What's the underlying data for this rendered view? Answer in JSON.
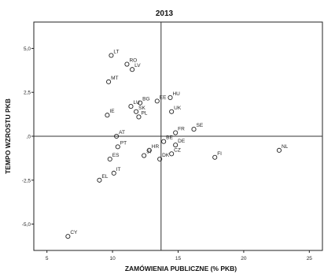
{
  "chart_data": {
    "type": "scatter",
    "title": "2013",
    "xlabel": "ZAMÓWIENIA PUBLICZNE (% PKB)",
    "ylabel": "TEMPO WZROSTU PKB",
    "xlim": [
      4,
      26
    ],
    "ylim": [
      -6.5,
      6.5
    ],
    "xticks": [
      5,
      10,
      15,
      20,
      25
    ],
    "yticks": [
      {
        "value": 5,
        "label": "5,0"
      },
      {
        "value": 2.5,
        "label": "2,5"
      },
      {
        "value": 0,
        "label": ",0"
      },
      {
        "value": -2.5,
        "label": "-2,5"
      },
      {
        "value": -5,
        "label": "-5,0"
      }
    ],
    "reference_lines": {
      "x": 13.7,
      "y": 0
    },
    "grid": false,
    "marker": "hollow-circle",
    "points": [
      {
        "label": "LT",
        "x": 9.9,
        "y": 4.6
      },
      {
        "label": "RO",
        "x": 11.1,
        "y": 4.1
      },
      {
        "label": "LV",
        "x": 11.5,
        "y": 3.8
      },
      {
        "label": "MT",
        "x": 9.7,
        "y": 3.1
      },
      {
        "label": "HU",
        "x": 14.4,
        "y": 2.2
      },
      {
        "label": "EE",
        "x": 13.4,
        "y": 2.0
      },
      {
        "label": "BG",
        "x": 12.1,
        "y": 1.9
      },
      {
        "label": "LU",
        "x": 11.4,
        "y": 1.7
      },
      {
        "label": "UK",
        "x": 14.5,
        "y": 1.4
      },
      {
        "label": "SK",
        "x": 11.8,
        "y": 1.4
      },
      {
        "label": "IE",
        "x": 9.6,
        "y": 1.2
      },
      {
        "label": "PL",
        "x": 12.0,
        "y": 1.1
      },
      {
        "label": "SE",
        "x": 16.2,
        "y": 0.4
      },
      {
        "label": "FR",
        "x": 14.8,
        "y": 0.2
      },
      {
        "label": "AT",
        "x": 10.3,
        "y": 0.0
      },
      {
        "label": "BE",
        "x": 13.9,
        "y": -0.3
      },
      {
        "label": "PT",
        "x": 10.4,
        "y": -0.6
      },
      {
        "label": "DE",
        "x": 14.8,
        "y": -0.5
      },
      {
        "label": "HR",
        "x": 12.8,
        "y": -0.8
      },
      {
        "label": "SI",
        "x": 12.4,
        "y": -1.1
      },
      {
        "label": "CZ",
        "x": 14.5,
        "y": -1.0
      },
      {
        "label": "DK",
        "x": 13.6,
        "y": -1.3
      },
      {
        "label": "ES",
        "x": 9.8,
        "y": -1.3
      },
      {
        "label": "FI",
        "x": 17.8,
        "y": -1.2
      },
      {
        "label": "NL",
        "x": 22.7,
        "y": -0.8
      },
      {
        "label": "IT",
        "x": 10.1,
        "y": -2.1
      },
      {
        "label": "EL",
        "x": 9.0,
        "y": -2.5
      },
      {
        "label": "CY",
        "x": 6.6,
        "y": -5.7
      }
    ]
  }
}
